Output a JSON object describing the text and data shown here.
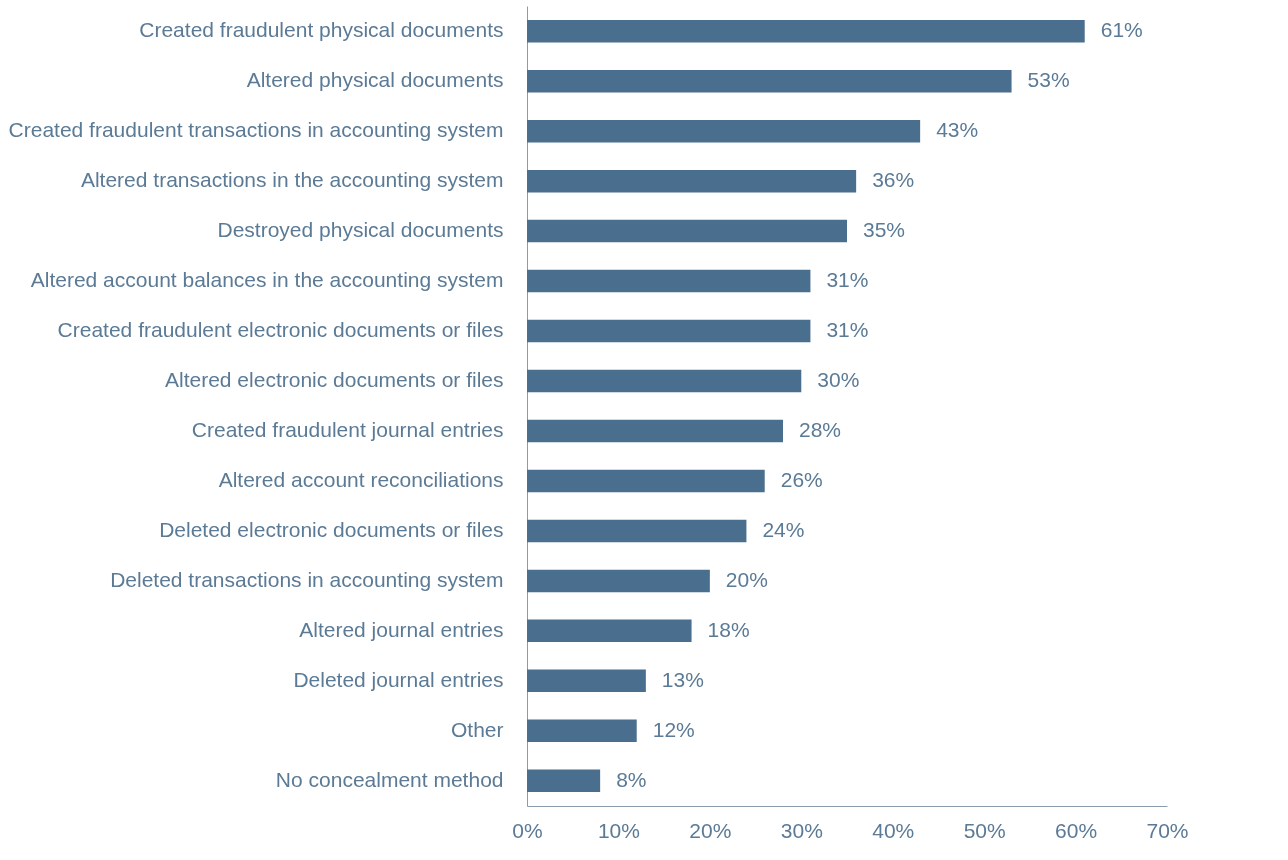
{
  "chart_data": {
    "type": "bar",
    "orientation": "horizontal",
    "categories": [
      "Created fraudulent physical documents",
      "Altered physical documents",
      "Created fraudulent transactions in accounting system",
      "Altered transactions in the accounting system",
      "Destroyed physical documents",
      "Altered account balances in the accounting system",
      "Created fraudulent electronic documents or files",
      "Altered electronic documents or files",
      "Created fraudulent journal entries",
      "Altered account reconciliations",
      "Deleted electronic documents or files",
      "Deleted transactions in accounting system",
      "Altered journal entries",
      "Deleted journal entries",
      "Other",
      "No concealment method"
    ],
    "values": [
      61,
      53,
      43,
      36,
      35,
      31,
      31,
      30,
      28,
      26,
      24,
      20,
      18,
      13,
      12,
      8
    ],
    "value_labels": [
      "61%",
      "53%",
      "43%",
      "36%",
      "35%",
      "31%",
      "31%",
      "30%",
      "28%",
      "26%",
      "24%",
      "20%",
      "18%",
      "13%",
      "12%",
      "8%"
    ],
    "color": "#4a6f8e",
    "xlim": [
      0,
      70
    ],
    "xticks": [
      {
        "value": 0,
        "label": "0%"
      },
      {
        "value": 10,
        "label": "10%"
      },
      {
        "value": 20,
        "label": "20%"
      },
      {
        "value": 30,
        "label": "30%"
      },
      {
        "value": 40,
        "label": "40%"
      },
      {
        "value": 50,
        "label": "50%"
      },
      {
        "value": 60,
        "label": "60%"
      },
      {
        "value": 70,
        "label": "70%"
      }
    ],
    "grid": false
  }
}
